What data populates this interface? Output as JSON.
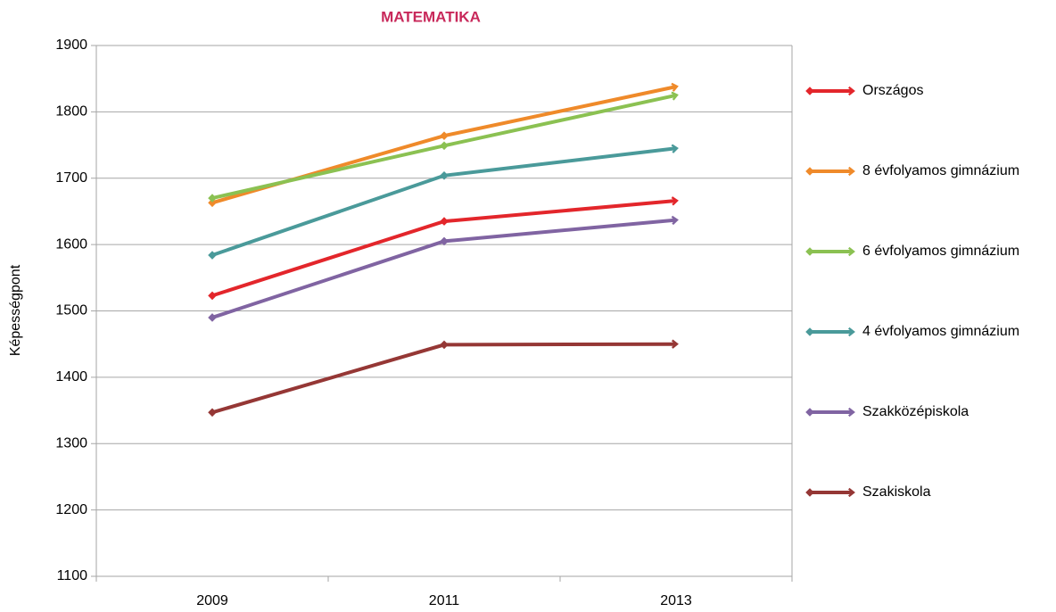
{
  "chart_data": {
    "type": "line",
    "title": "MATEMATIKA",
    "y_label": "Képességpont",
    "categories": [
      "2009",
      "2011",
      "2013"
    ],
    "series": [
      {
        "name": "Országos",
        "color": "#e3262b",
        "values": [
          1523,
          1635,
          1666
        ]
      },
      {
        "name": "8 évfolyamos gimnázium",
        "color": "#ef8a2a",
        "values": [
          1663,
          1764,
          1838
        ]
      },
      {
        "name": "6 évfolyamos gimnázium",
        "color": "#8bc152",
        "values": [
          1670,
          1749,
          1825
        ]
      },
      {
        "name": "4 évfolyamos gimnázium",
        "color": "#4a9a9a",
        "values": [
          1584,
          1704,
          1745
        ]
      },
      {
        "name": "Szakközépiskola",
        "color": "#8064a2",
        "values": [
          1490,
          1605,
          1637
        ]
      },
      {
        "name": "Szakiskola",
        "color": "#953735",
        "values": [
          1347,
          1449,
          1450
        ]
      }
    ],
    "ylim": [
      1100,
      1900
    ],
    "yticks": [
      1100,
      1200,
      1300,
      1400,
      1500,
      1600,
      1700,
      1800,
      1900
    ],
    "grid": true,
    "legend": "right"
  }
}
